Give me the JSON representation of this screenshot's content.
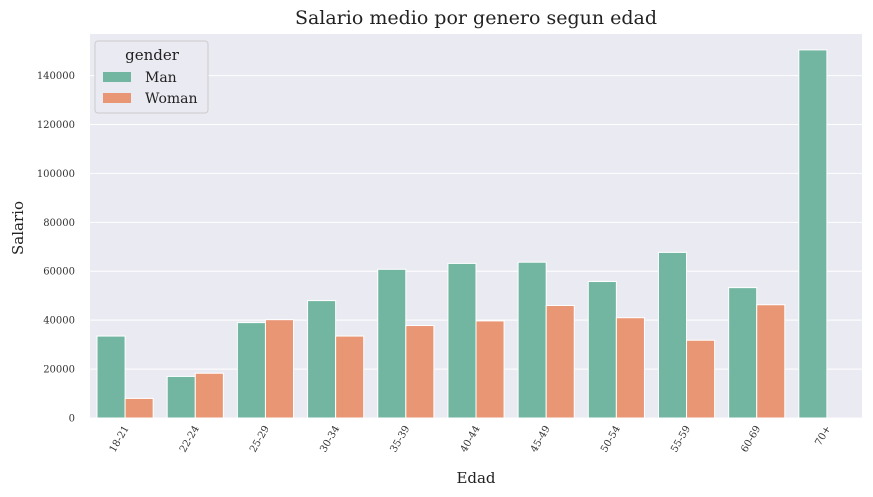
{
  "chart_data": {
    "type": "bar",
    "title": "Salario medio por genero segun edad",
    "xlabel": "Edad",
    "ylabel": "Salario",
    "categories": [
      "18-21",
      "22-24",
      "25-29",
      "30-34",
      "35-39",
      "40-44",
      "45-49",
      "50-54",
      "55-59",
      "60-69",
      "70+"
    ],
    "series": [
      {
        "name": "Man",
        "color": "#72b6a1",
        "values": [
          33500,
          17000,
          39000,
          48000,
          60800,
          63200,
          63700,
          55800,
          67700,
          53300,
          150500
        ]
      },
      {
        "name": "Woman",
        "color": "#e99675",
        "values": [
          8000,
          18300,
          40200,
          33500,
          37800,
          39700,
          46000,
          41000,
          31800,
          46300,
          null
        ]
      }
    ],
    "yticks": [
      0,
      20000,
      40000,
      60000,
      80000,
      100000,
      120000,
      140000
    ],
    "ylim": [
      0,
      157000
    ],
    "legend": {
      "title": "gender",
      "position": "top-left"
    },
    "grid": true,
    "background": "#eaeaf2"
  }
}
